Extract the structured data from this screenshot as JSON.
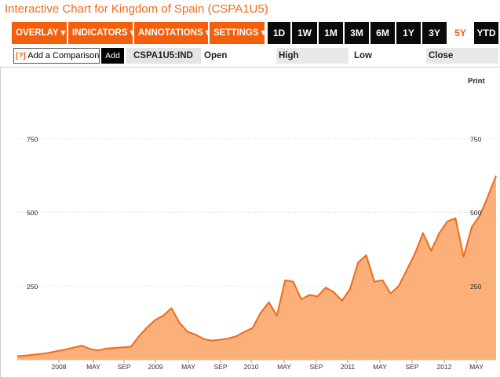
{
  "page": {
    "title": "Interactive Chart for Kingdom of Spain (CSPA1U5)"
  },
  "toolbar": {
    "menus": [
      {
        "label": "OVERLAY ▾",
        "name": "overlay-menu-button"
      },
      {
        "label": "INDICATORS ▾",
        "name": "indicators-menu-button"
      },
      {
        "label": "ANNOTATIONS ▾",
        "name": "annotations-menu-button"
      },
      {
        "label": "SETTINGS ▾",
        "name": "settings-menu-button"
      }
    ],
    "ranges": [
      "1D",
      "1W",
      "1M",
      "3M",
      "6M",
      "1Y",
      "3Y",
      "5Y",
      "YTD"
    ],
    "active_range": "5Y"
  },
  "comparison": {
    "help": "[?]",
    "placeholder": "Add a Comparison",
    "add_label": "Add"
  },
  "quote": {
    "symbol": "CSPA1U5:IND",
    "open_label": "Open",
    "high_label": "High",
    "low_label": "Low",
    "close_label": "Close"
  },
  "print_label": "Print",
  "colors": {
    "accent": "#f2600e",
    "line": "#f06a1a",
    "fill": "#fbb07a",
    "title": "#ef6c1d"
  },
  "chart_data": {
    "type": "area",
    "x_tick_labels": [
      "2008",
      "MAY",
      "SEP",
      "2009",
      "MAY",
      "SEP",
      "2010",
      "MAY",
      "SEP",
      "2011",
      "MAY",
      "SEP",
      "2012",
      "MAY"
    ],
    "y_ticks": [
      250,
      500,
      750
    ],
    "ylim": [
      0,
      1050
    ],
    "grid": true,
    "series": [
      {
        "x": [
          "2007-07",
          "2007-08",
          "2007-09",
          "2007-10",
          "2007-11",
          "2007-12",
          "2008-01",
          "2008-02",
          "2008-03",
          "2008-04",
          "2008-05",
          "2008-06",
          "2008-07",
          "2008-08",
          "2008-09",
          "2008-10",
          "2008-11",
          "2008-12",
          "2009-01",
          "2009-02",
          "2009-03",
          "2009-04",
          "2009-05",
          "2009-06",
          "2009-07",
          "2009-08",
          "2009-09",
          "2009-10",
          "2009-11",
          "2009-12",
          "2010-01",
          "2010-02",
          "2010-03",
          "2010-04",
          "2010-05",
          "2010-06",
          "2010-07",
          "2010-08",
          "2010-09",
          "2010-10",
          "2010-11",
          "2010-12",
          "2011-01",
          "2011-02",
          "2011-03",
          "2011-04",
          "2011-05",
          "2011-06",
          "2011-07",
          "2011-08",
          "2011-09",
          "2011-10",
          "2011-11",
          "2011-12",
          "2012-01",
          "2012-02",
          "2012-03",
          "2012-04",
          "2012-05",
          "2012-06"
        ],
        "values": [
          12,
          14,
          17,
          20,
          24,
          30,
          35,
          42,
          48,
          36,
          32,
          38,
          40,
          42,
          44,
          80,
          110,
          135,
          150,
          175,
          125,
          95,
          85,
          70,
          65,
          68,
          72,
          80,
          95,
          108,
          160,
          195,
          150,
          270,
          265,
          205,
          220,
          215,
          245,
          230,
          200,
          240,
          330,
          355,
          265,
          270,
          225,
          250,
          305,
          360,
          430,
          370,
          430,
          470,
          480,
          350,
          450,
          490,
          555,
          625
        ]
      }
    ]
  }
}
